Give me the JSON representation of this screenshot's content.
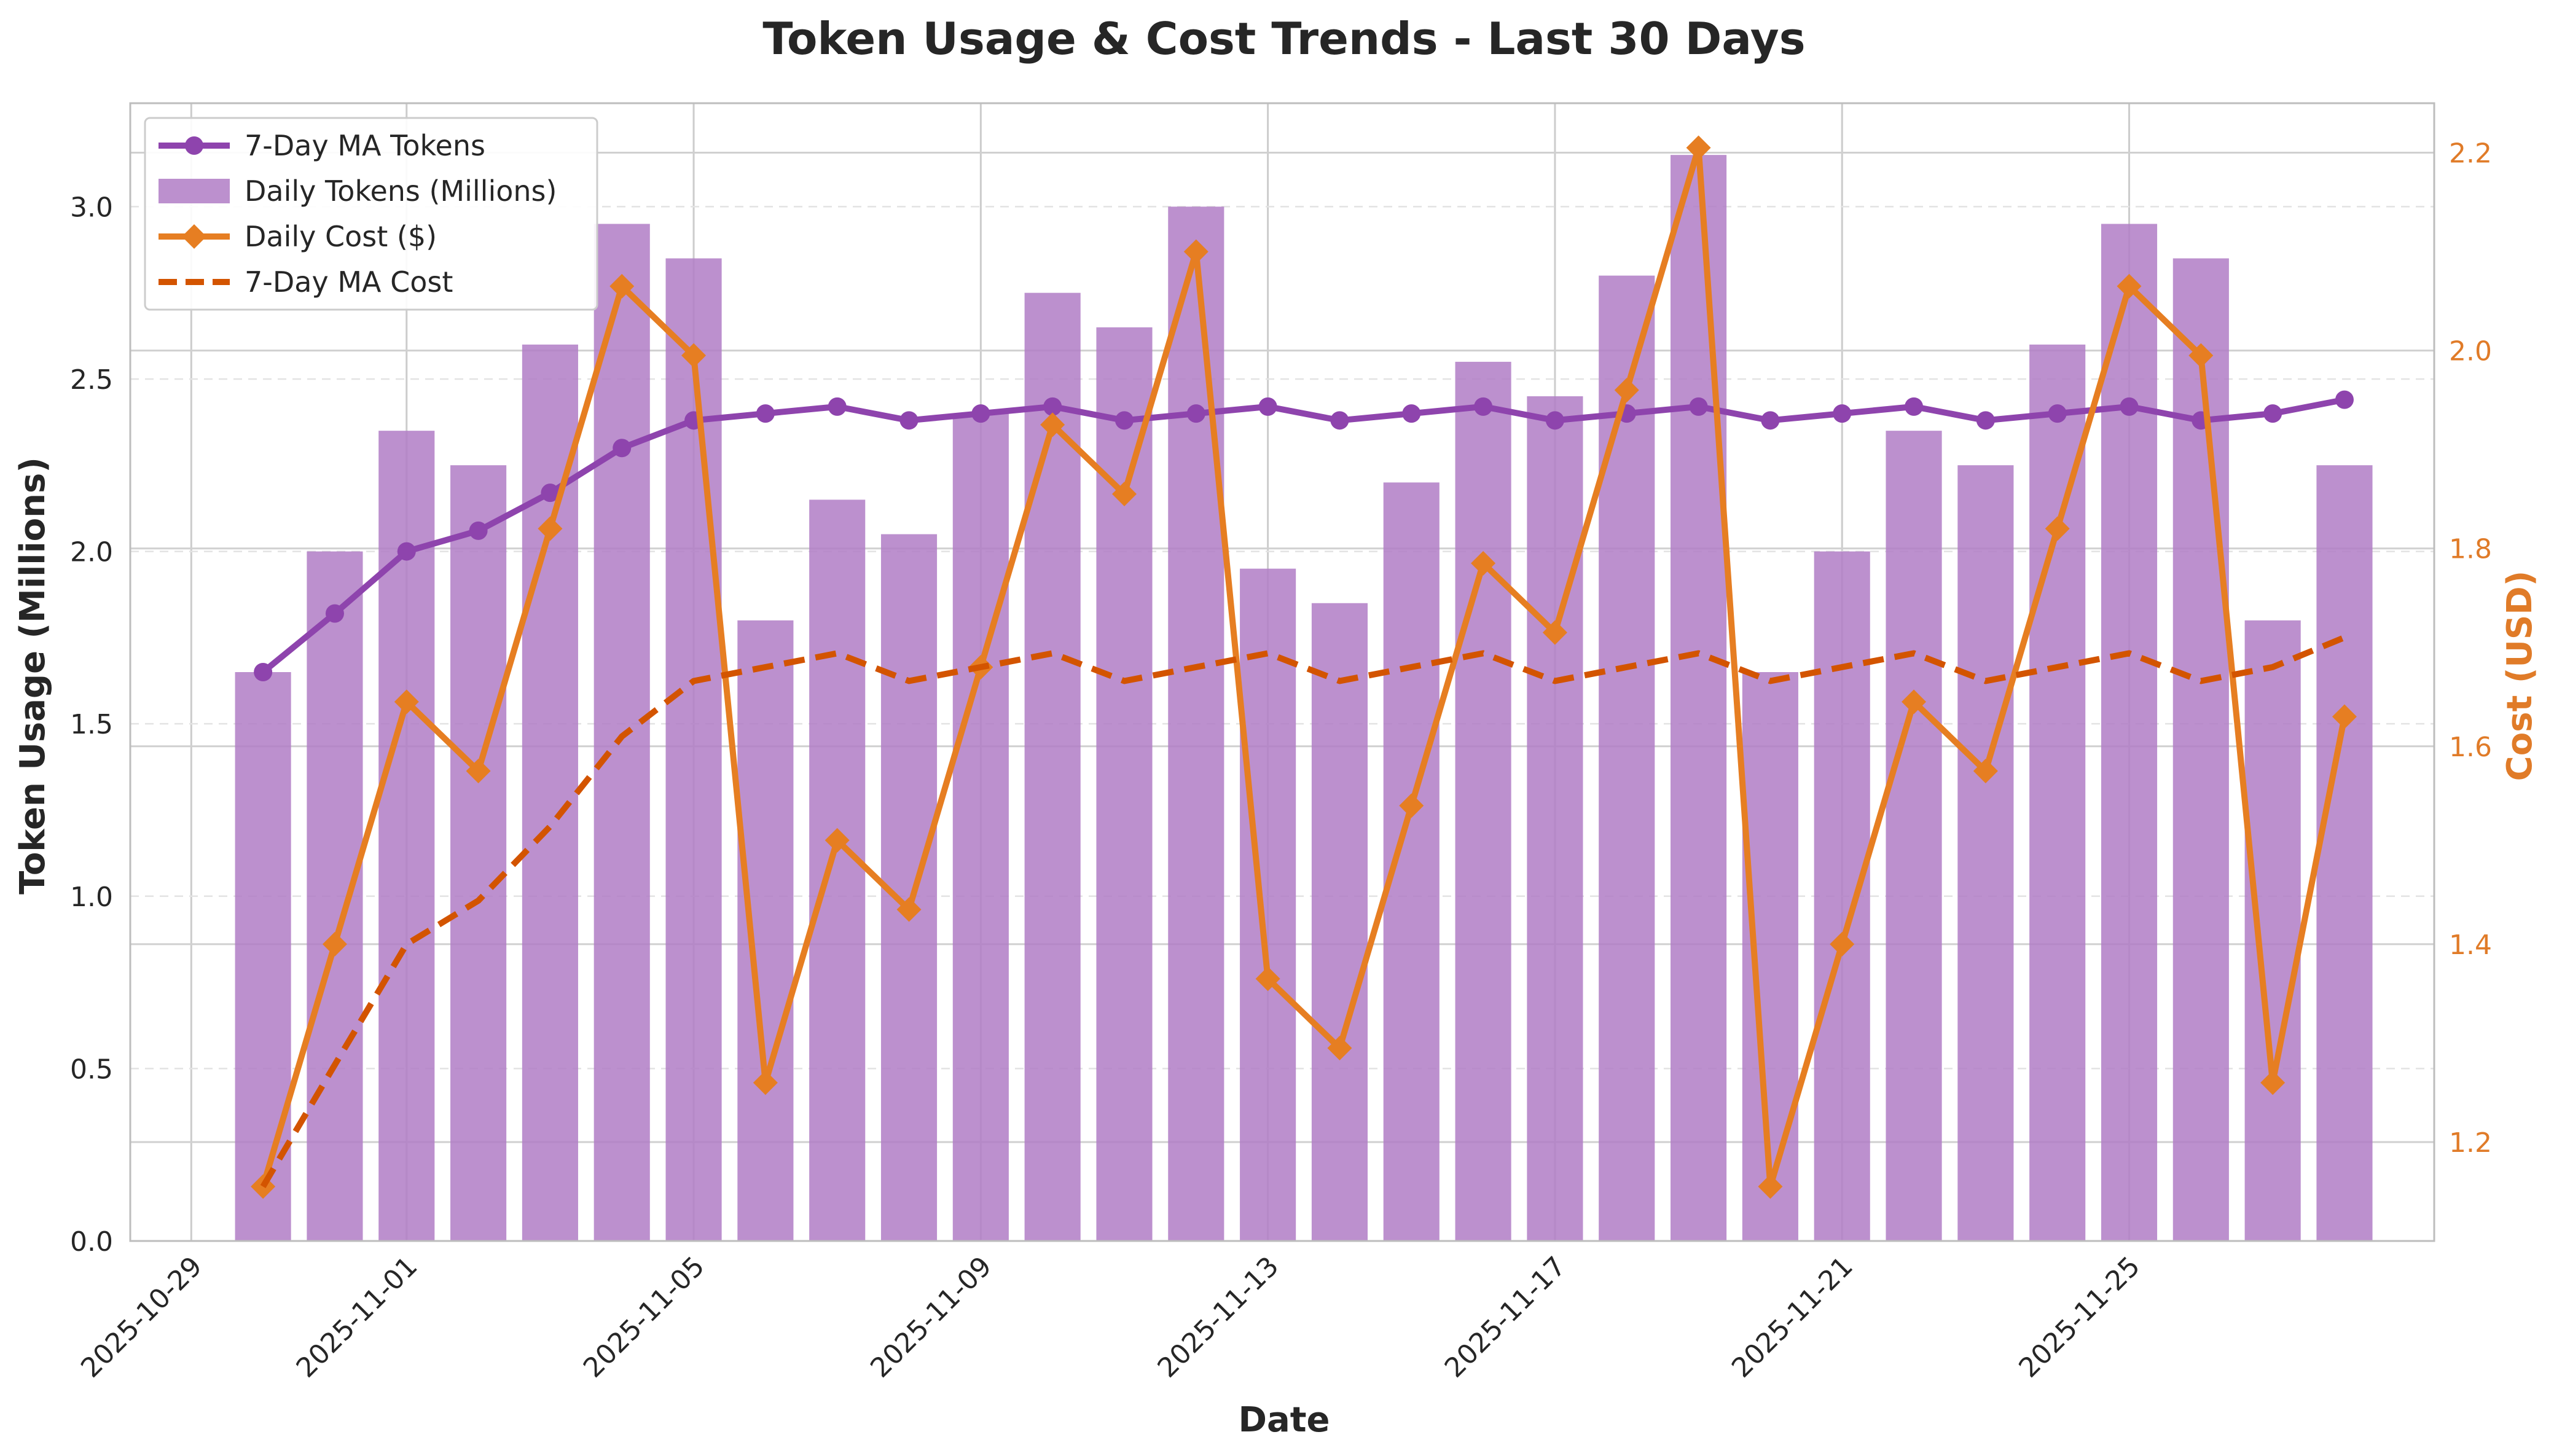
{
  "chart_data": {
    "type": "bar+line",
    "title": "Token Usage & Cost Trends - Last 30 Days",
    "xlabel": "Date",
    "ylabel_left": "Token Usage (Millions)",
    "ylabel_right": "Cost (USD)",
    "ylim_left": [
      0,
      3.3
    ],
    "ylim_right": [
      1.1,
      2.25
    ],
    "yticks_left": [
      "0.0",
      "0.5",
      "1.0",
      "1.5",
      "2.0",
      "2.5",
      "3.0"
    ],
    "yticks_right": [
      "1.2",
      "1.4",
      "1.6",
      "1.8",
      "2.0",
      "2.2"
    ],
    "xticks": [
      "2025-10-29",
      "2025-11-01",
      "2025-11-05",
      "2025-11-09",
      "2025-11-13",
      "2025-11-17",
      "2025-11-21",
      "2025-11-25"
    ],
    "grid": true,
    "legend_position": "top-left",
    "dates": [
      "2025-10-30",
      "2025-10-31",
      "2025-11-01",
      "2025-11-02",
      "2025-11-03",
      "2025-11-04",
      "2025-11-05",
      "2025-11-06",
      "2025-11-07",
      "2025-11-08",
      "2025-11-09",
      "2025-11-10",
      "2025-11-11",
      "2025-11-12",
      "2025-11-13",
      "2025-11-14",
      "2025-11-15",
      "2025-11-16",
      "2025-11-17",
      "2025-11-18",
      "2025-11-19",
      "2025-11-20",
      "2025-11-21",
      "2025-11-22",
      "2025-11-23",
      "2025-11-24",
      "2025-11-25",
      "2025-11-26",
      "2025-11-27",
      "2025-11-28"
    ],
    "series": [
      {
        "name": "Daily Tokens (Millions)",
        "kind": "bar",
        "axis": "left",
        "color": "#b07cc6",
        "values": [
          1.65,
          2.0,
          2.35,
          2.25,
          2.6,
          2.95,
          2.85,
          1.8,
          2.15,
          2.05,
          2.4,
          2.75,
          2.65,
          3.0,
          1.95,
          1.85,
          2.2,
          2.55,
          2.45,
          2.8,
          3.15,
          1.65,
          2.0,
          2.35,
          2.25,
          2.6,
          2.95,
          2.85,
          1.8,
          2.25
        ]
      },
      {
        "name": "7-Day MA Tokens",
        "kind": "line",
        "axis": "left",
        "color": "#8e44ad",
        "values": [
          1.65,
          1.82,
          2.0,
          2.06,
          2.17,
          2.3,
          2.38,
          2.4,
          2.42,
          2.38,
          2.4,
          2.42,
          2.38,
          2.4,
          2.42,
          2.38,
          2.4,
          2.42,
          2.38,
          2.4,
          2.42,
          2.38,
          2.4,
          2.42,
          2.38,
          2.4,
          2.42,
          2.38,
          2.4,
          2.44
        ]
      },
      {
        "name": "Daily Cost ($)",
        "kind": "line",
        "axis": "right",
        "color": "#e67e22",
        "values": [
          1.155,
          1.4,
          1.645,
          1.575,
          1.82,
          2.065,
          1.995,
          1.26,
          1.505,
          1.435,
          1.68,
          1.925,
          1.855,
          2.1,
          1.365,
          1.295,
          1.54,
          1.785,
          1.715,
          1.96,
          2.205,
          1.155,
          1.4,
          1.645,
          1.575,
          1.82,
          2.065,
          1.995,
          1.26,
          1.63
        ]
      },
      {
        "name": "7-Day MA Cost",
        "kind": "line-dashed",
        "axis": "right",
        "color": "#d35400",
        "values": [
          1.155,
          1.278,
          1.4,
          1.444,
          1.519,
          1.61,
          1.666,
          1.68,
          1.694,
          1.666,
          1.68,
          1.694,
          1.666,
          1.68,
          1.694,
          1.666,
          1.68,
          1.694,
          1.666,
          1.68,
          1.694,
          1.666,
          1.68,
          1.694,
          1.666,
          1.68,
          1.694,
          1.666,
          1.68,
          1.71
        ]
      }
    ],
    "legend_order": [
      "7-Day MA Tokens",
      "Daily Tokens (Millions)",
      "Daily Cost ($)",
      "7-Day MA Cost"
    ]
  }
}
